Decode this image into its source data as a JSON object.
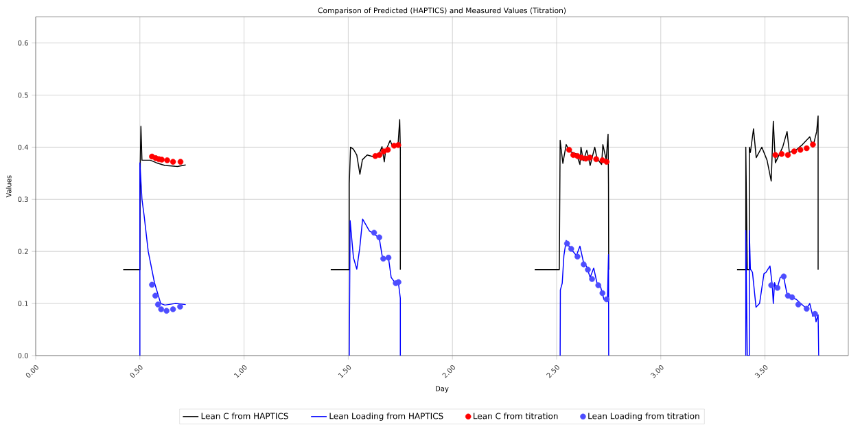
{
  "chart_data": {
    "type": "line",
    "title": "Comparison of Predicted (HAPTICS) and Measured Values (Titration)",
    "xlabel": "Day",
    "ylabel": "Values",
    "xlim": [
      0,
      3.9
    ],
    "ylim": [
      0,
      0.65
    ],
    "xticks": [
      {
        "value": 0,
        "label": "0.00"
      },
      {
        "value": 0.5,
        "label": "0.50"
      },
      {
        "value": 1,
        "label": "1.00"
      },
      {
        "value": 1.5,
        "label": "1.50"
      },
      {
        "value": 2,
        "label": "2.00"
      },
      {
        "value": 2.5,
        "label": "2.50"
      },
      {
        "value": 3,
        "label": "3.00"
      },
      {
        "value": 3.5,
        "label": "3.50"
      }
    ],
    "yticks": [
      {
        "value": 0,
        "label": "0.0"
      },
      {
        "value": 0.1,
        "label": "0.1"
      },
      {
        "value": 0.2,
        "label": "0.2"
      },
      {
        "value": 0.3,
        "label": "0.3"
      },
      {
        "value": 0.4,
        "label": "0.4"
      },
      {
        "value": 0.5,
        "label": "0.5"
      },
      {
        "value": 0.6,
        "label": "0.6"
      }
    ],
    "grid": true,
    "legend": "bottom",
    "series": [
      {
        "name": "Lean C from HAPTICS",
        "color": "#000000",
        "x": [
          0.42,
          0.5,
          0.502,
          0.505,
          0.51,
          0.55,
          0.58,
          0.62,
          0.68,
          0.72,
          1.0,
          1.416,
          1.505,
          1.505,
          1.511,
          1.525,
          1.541,
          1.556,
          1.568,
          1.591,
          1.617,
          1.65,
          1.662,
          1.673,
          1.679,
          1.701,
          1.712,
          1.739,
          1.747,
          1.75,
          1.75,
          2.0,
          2.395,
          2.513,
          2.517,
          2.53,
          2.546,
          2.562,
          2.595,
          2.612,
          2.617,
          2.628,
          2.645,
          2.661,
          2.683,
          2.694,
          2.716,
          2.722,
          2.738,
          2.747,
          2.749,
          2.75,
          3.0,
          3.366,
          3.408,
          3.408,
          3.415,
          3.425,
          3.425,
          3.43,
          3.445,
          3.458,
          3.485,
          3.51,
          3.53,
          3.54,
          3.55,
          3.585,
          3.606,
          3.617,
          3.65,
          3.68,
          3.715,
          3.73,
          3.748,
          3.755,
          3.755
        ],
        "values": [
          0.165,
          0.165,
          0.375,
          0.44,
          0.375,
          0.375,
          0.37,
          0.365,
          0.363,
          0.366,
          null,
          0.165,
          0.165,
          0.33,
          0.4,
          0.396,
          0.385,
          0.348,
          0.376,
          0.385,
          0.382,
          0.389,
          0.401,
          0.372,
          0.392,
          0.413,
          0.402,
          0.405,
          0.453,
          0.396,
          0.165,
          null,
          0.165,
          0.165,
          0.413,
          0.369,
          0.405,
          0.392,
          0.387,
          0.367,
          0.4,
          0.374,
          0.394,
          0.365,
          0.4,
          0.378,
          0.367,
          0.405,
          0.376,
          0.425,
          0.329,
          0.165,
          null,
          0.165,
          0.165,
          0.4,
          0.165,
          0.165,
          0.4,
          0.39,
          0.435,
          0.38,
          0.4,
          0.375,
          0.335,
          0.45,
          0.37,
          0.4,
          0.43,
          0.39,
          0.395,
          0.405,
          0.42,
          0.4,
          0.43,
          0.46,
          0.165
        ]
      },
      {
        "name": "Lean Loading from HAPTICS",
        "color": "#0000ff",
        "x": [
          0.5,
          0.5,
          0.51,
          0.52,
          0.54,
          0.57,
          0.6,
          0.62,
          0.67,
          0.72,
          1.0,
          1.505,
          1.509,
          1.525,
          1.541,
          1.555,
          1.569,
          1.602,
          1.624,
          1.649,
          1.665,
          1.693,
          1.706,
          1.73,
          1.741,
          1.75,
          1.75,
          2.0,
          2.517,
          2.518,
          2.527,
          2.535,
          2.546,
          2.562,
          2.595,
          2.612,
          2.628,
          2.645,
          2.661,
          2.678,
          2.694,
          2.711,
          2.727,
          2.744,
          2.749,
          2.75,
          3.0,
          3.408,
          3.408,
          3.415,
          3.425,
          3.425,
          3.43,
          3.44,
          3.457,
          3.474,
          3.495,
          3.505,
          3.524,
          3.535,
          3.54,
          3.546,
          3.557,
          3.573,
          3.589,
          3.605,
          3.617,
          3.65,
          3.7,
          3.715,
          3.73,
          3.74,
          3.745,
          3.755,
          3.758
        ],
        "values": [
          0,
          0.37,
          0.3,
          0.27,
          0.2,
          0.14,
          0.1,
          0.097,
          0.1,
          0.098,
          null,
          0,
          0.259,
          0.188,
          0.166,
          0.206,
          0.262,
          0.239,
          0.234,
          0.225,
          0.186,
          0.188,
          0.15,
          0.137,
          0.139,
          0.11,
          0,
          null,
          0,
          0.126,
          0.139,
          0.192,
          0.221,
          0.208,
          0.192,
          0.21,
          0.181,
          0.17,
          0.15,
          0.168,
          0.139,
          0.132,
          0.108,
          0.104,
          0.194,
          0,
          null,
          0,
          0.24,
          0,
          0,
          0.24,
          0.166,
          0.16,
          0.093,
          0.1,
          0.157,
          0.16,
          0.172,
          0.135,
          0.1,
          0.14,
          0.126,
          0.15,
          0.152,
          0.12,
          0.113,
          0.108,
          0.09,
          0.1,
          0.075,
          0.085,
          0.065,
          0.078,
          0
        ]
      },
      {
        "name": "Lean C from titration",
        "type": "scatter",
        "color": "#ff0000",
        "x": [
          0.558,
          0.576,
          0.591,
          0.605,
          0.631,
          0.659,
          0.695,
          1.63,
          1.65,
          1.67,
          1.69,
          1.72,
          1.74,
          2.56,
          2.58,
          2.6,
          2.62,
          2.64,
          2.66,
          2.69,
          2.72,
          2.74,
          3.55,
          3.58,
          3.61,
          3.64,
          3.67,
          3.7,
          3.73
        ],
        "values": [
          0.382,
          0.379,
          0.377,
          0.376,
          0.375,
          0.372,
          0.372,
          0.383,
          0.385,
          0.392,
          0.395,
          0.403,
          0.404,
          0.395,
          0.385,
          0.383,
          0.38,
          0.378,
          0.38,
          0.377,
          0.375,
          0.372,
          0.385,
          0.387,
          0.385,
          0.392,
          0.395,
          0.398,
          0.405
        ]
      },
      {
        "name": "Lean Loading from titration",
        "type": "scatter",
        "color": "#4d4dff",
        "x": [
          0.558,
          0.574,
          0.587,
          0.602,
          0.628,
          0.659,
          0.693,
          1.624,
          1.649,
          1.668,
          1.693,
          1.728,
          1.741,
          2.55,
          2.57,
          2.6,
          2.63,
          2.65,
          2.67,
          2.7,
          2.72,
          2.74,
          3.53,
          3.56,
          3.59,
          3.61,
          3.63,
          3.66,
          3.7,
          3.74
        ],
        "values": [
          0.136,
          0.115,
          0.098,
          0.089,
          0.086,
          0.089,
          0.094,
          0.236,
          0.227,
          0.186,
          0.188,
          0.139,
          0.141,
          0.215,
          0.205,
          0.19,
          0.175,
          0.165,
          0.147,
          0.135,
          0.12,
          0.108,
          0.135,
          0.13,
          0.152,
          0.115,
          0.112,
          0.098,
          0.09,
          0.08
        ]
      }
    ]
  }
}
